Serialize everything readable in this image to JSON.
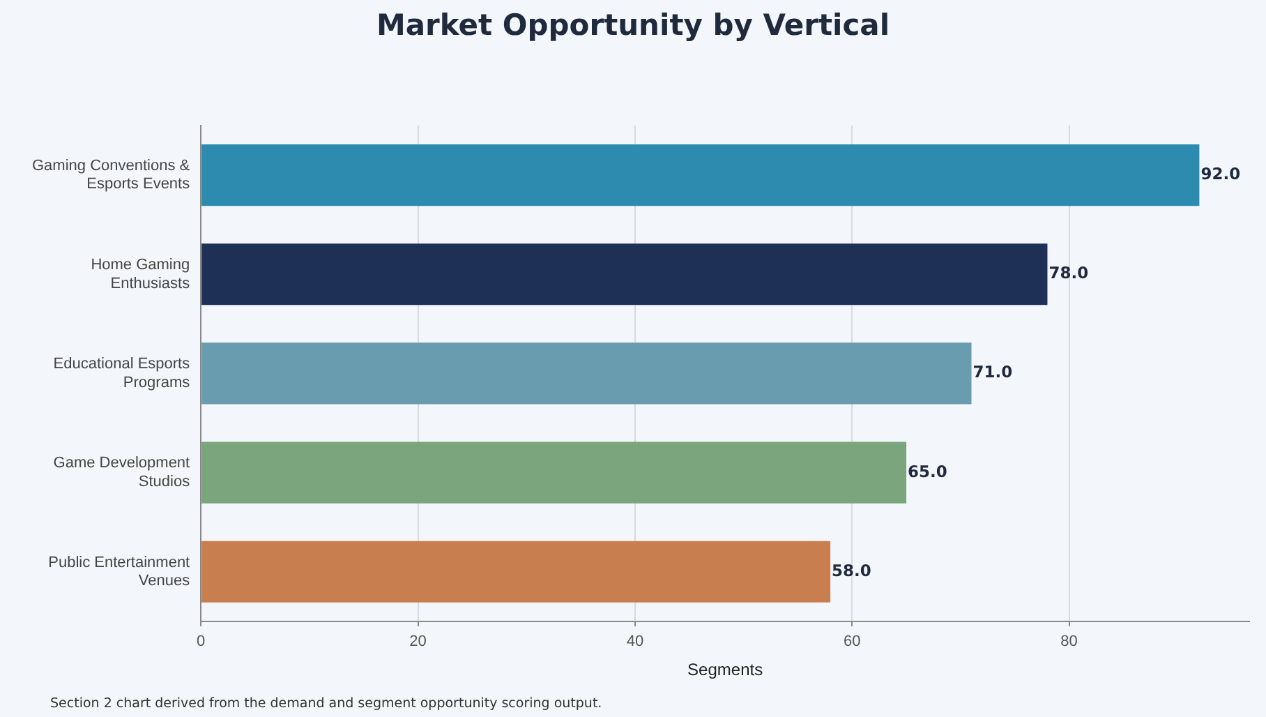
{
  "chart_data": {
    "type": "bar",
    "orientation": "horizontal",
    "title": "Market Opportunity by Vertical",
    "xlabel": "Segments",
    "categories": [
      "Gaming Conventions & Esports Events",
      "Home Gaming Enthusiasts",
      "Educational Esports Programs",
      "Game Development Studios",
      "Public Entertainment Venues"
    ],
    "values": [
      92,
      78,
      71,
      65,
      58
    ],
    "colors": [
      "#2e8bb0",
      "#1f3057",
      "#6a9caf",
      "#7aa57d",
      "#c97e50"
    ],
    "value_labels": [
      "92.0",
      "78.0",
      "71.0",
      "65.0",
      "58.0"
    ],
    "xlim": [
      0,
      96.6
    ],
    "xticks": [
      0,
      20,
      40,
      60,
      80
    ],
    "grid": "x",
    "legend": false,
    "annotations": [
      "Section 2 chart derived from the demand and segment opportunity scoring output."
    ]
  }
}
